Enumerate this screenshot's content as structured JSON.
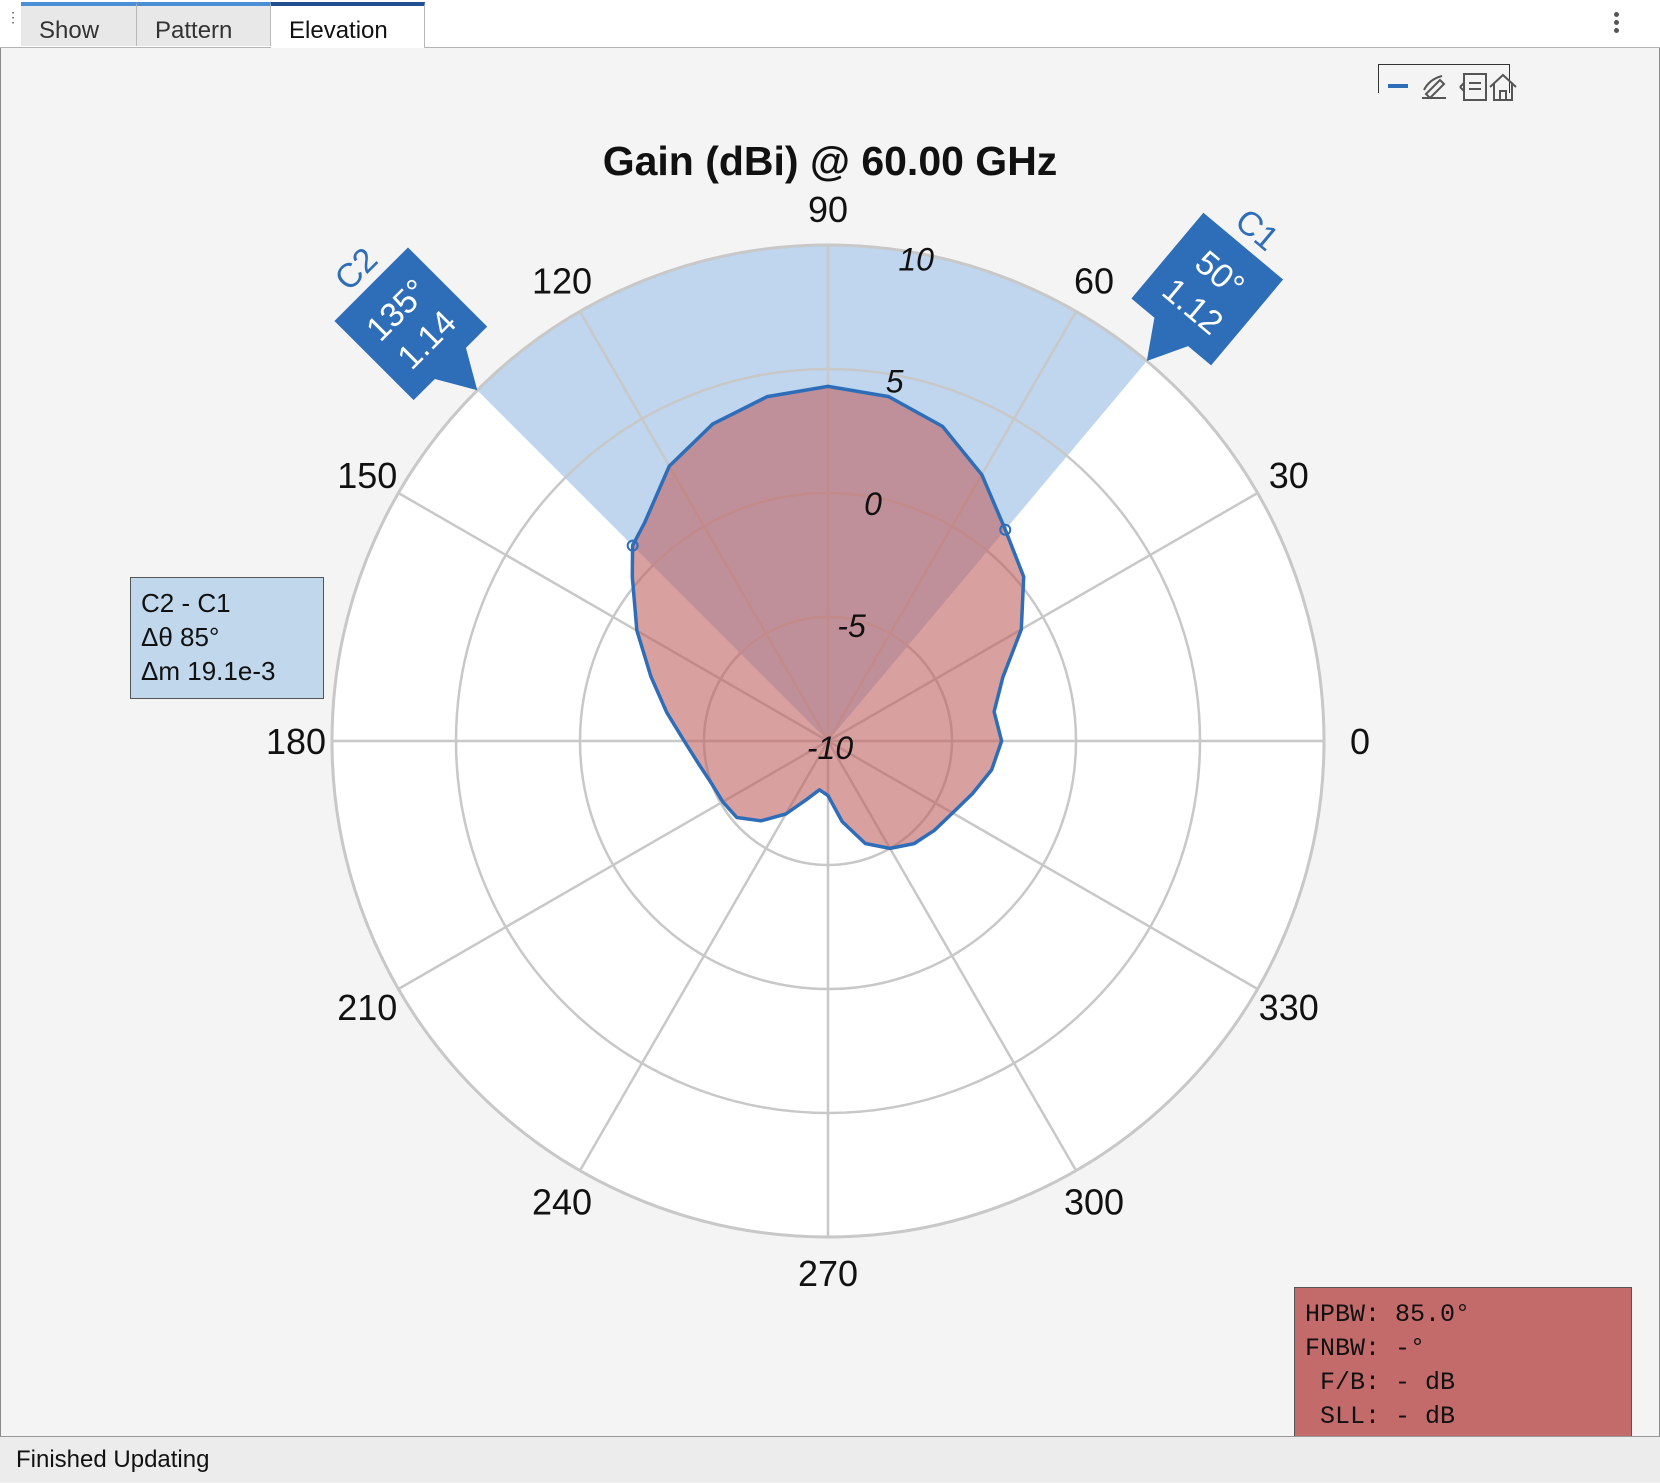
{
  "tabs": [
    {
      "label": "Show",
      "active": false
    },
    {
      "label": "Pattern",
      "active": false
    },
    {
      "label": "Elevation",
      "active": true
    }
  ],
  "toolbar": {
    "icons": [
      "minus-icon",
      "edit-icon",
      "legend-icon",
      "home-icon"
    ]
  },
  "status": {
    "text": "Finished Updating"
  },
  "cursor_delta": {
    "lines": [
      "C2 - C1",
      "Δθ 85°",
      "Δm 19.1e-3"
    ]
  },
  "metrics": {
    "lines": [
      "HPBW: 85.0°",
      "FNBW: -°",
      " F/B: - dB",
      " SLL: - dB"
    ]
  },
  "colors": {
    "pattern_fill": "#c06060",
    "pattern_line": "#2e6db8",
    "span_fill": "#a9c8e8",
    "marker": "#2e6db8"
  },
  "chart_data": {
    "type": "polar",
    "title": "Gain (dBi) @ 60.00 GHz",
    "angle_ticks": [
      "0",
      "30",
      "60",
      "90",
      "120",
      "150",
      "180",
      "210",
      "240",
      "270",
      "300",
      "330"
    ],
    "angle_values": [
      0,
      30,
      60,
      90,
      120,
      150,
      180,
      210,
      240,
      270,
      300,
      330
    ],
    "r_ticks": [
      "-10",
      "-5",
      "0",
      "5",
      "10"
    ],
    "r_values": [
      -10,
      -5,
      0,
      5,
      10
    ],
    "rlim": [
      -10,
      10
    ],
    "grid": true,
    "span": {
      "from_deg": 50,
      "to_deg": 135
    },
    "cursors": [
      {
        "id": "C1",
        "angle": "50°",
        "angle_deg": 50,
        "value": "1.12",
        "value_num": 1.12
      },
      {
        "id": "C2",
        "angle": "135°",
        "angle_deg": 135,
        "value": "1.14",
        "value_num": 1.14
      }
    ],
    "series": [
      {
        "theta": [
          0,
          10,
          20,
          30,
          40,
          50,
          60,
          70,
          80,
          90,
          100,
          110,
          120,
          130,
          135,
          140,
          150,
          160,
          170,
          180,
          190,
          200,
          210,
          220,
          230,
          240,
          250,
          260,
          270,
          280,
          290,
          300,
          310,
          320,
          330,
          340,
          350,
          360
        ],
        "r": [
          -3.0,
          -3.2,
          -2.5,
          -1.0,
          0.3,
          1.12,
          2.4,
          3.5,
          4.1,
          4.3,
          4.1,
          3.6,
          2.8,
          1.5,
          1.14,
          0.3,
          -1.1,
          -2.4,
          -3.4,
          -4.2,
          -4.7,
          -5.0,
          -5.1,
          -5.2,
          -5.8,
          -6.6,
          -7.5,
          -8.0,
          -7.8,
          -6.7,
          -5.6,
          -5.0,
          -4.6,
          -4.4,
          -4.2,
          -3.8,
          -3.3,
          -3.0
        ]
      }
    ]
  }
}
